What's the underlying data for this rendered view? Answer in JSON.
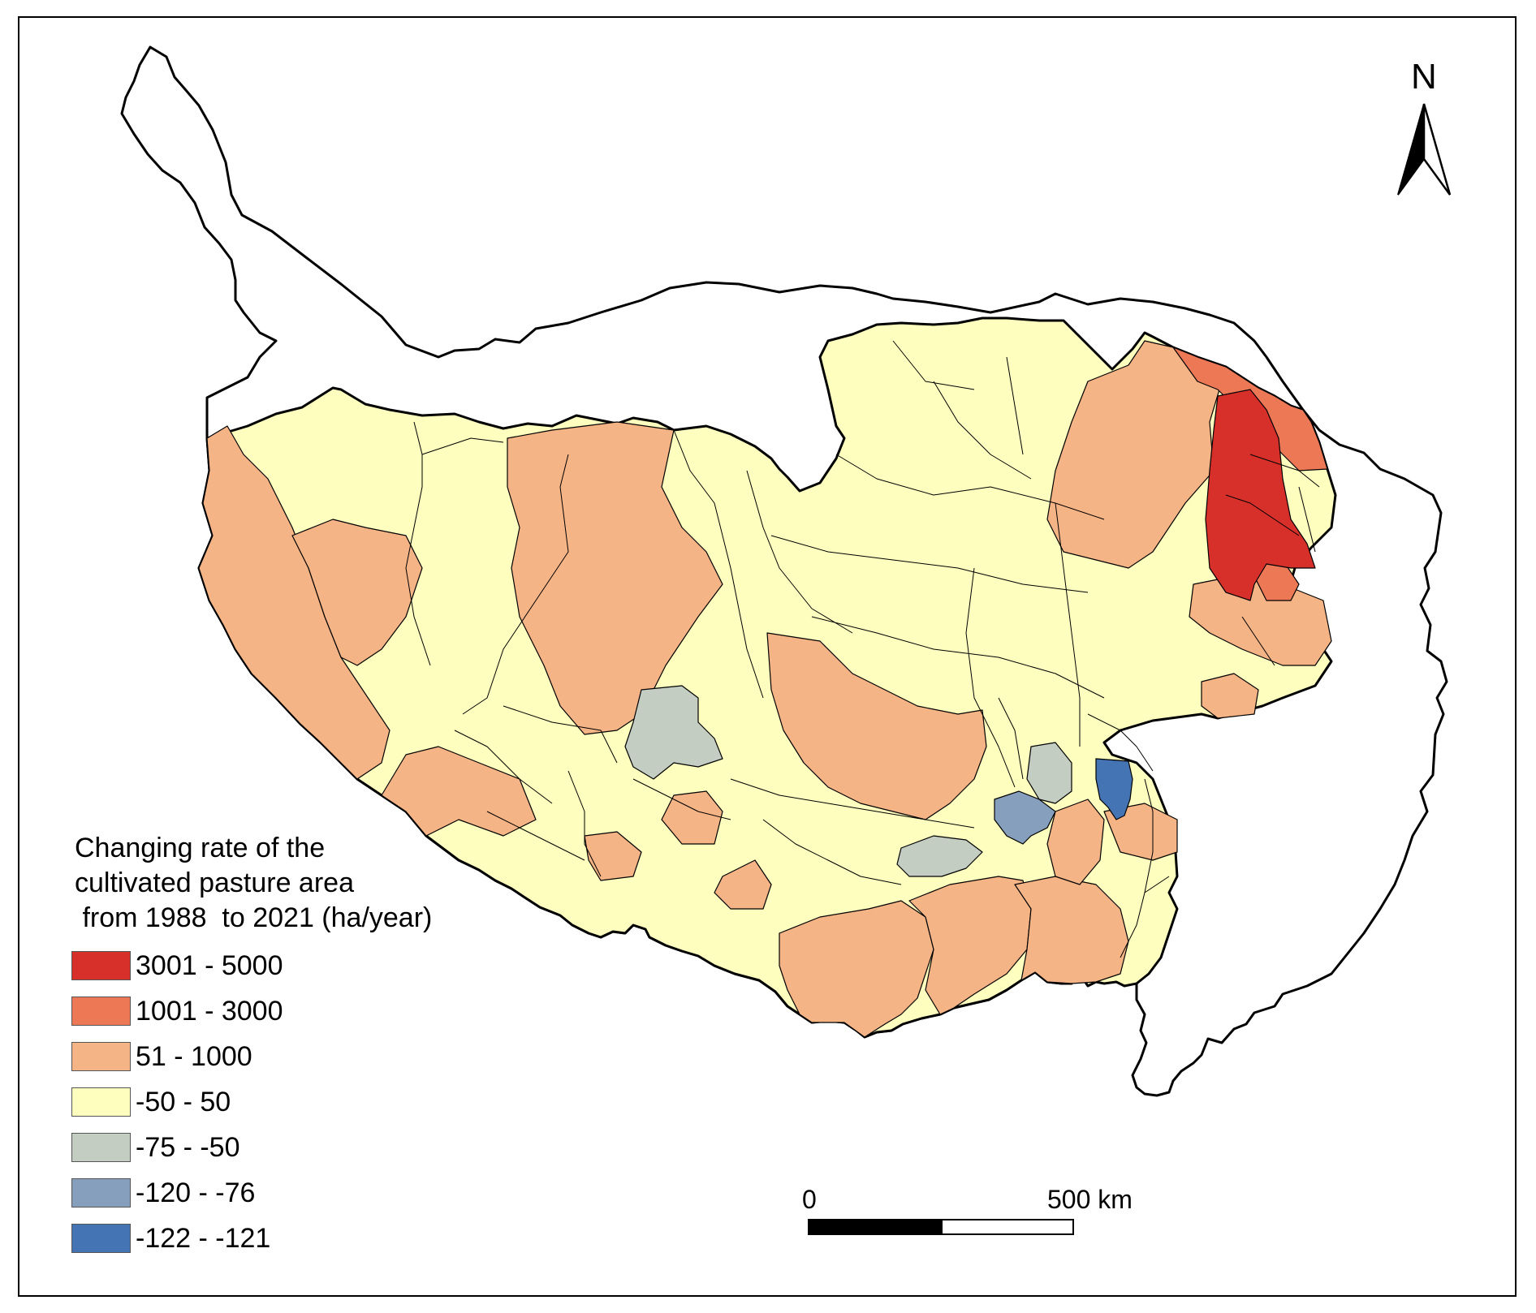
{
  "legend": {
    "title": "Changing rate of the\ncultivated pasture area\n from 1988  to 2021 (ha/year)",
    "classes": [
      {
        "label": "3001 - 5000",
        "color": "#d7302a"
      },
      {
        "label": "1001 - 3000",
        "color": "#ec7856"
      },
      {
        "label": "51 - 1000",
        "color": "#f5b486"
      },
      {
        "label": "-50 - 50",
        "color": "#fefebf"
      },
      {
        "label": "-75 - -50",
        "color": "#c4cdc1"
      },
      {
        "label": "-120 - -76",
        "color": "#859fbd"
      },
      {
        "label": "-122 - -121",
        "color": "#4574b5"
      }
    ]
  },
  "scale_bar": {
    "start_label": "0",
    "end_label": "500 km"
  },
  "north_arrow": {
    "label": "N",
    "icon": "north-arrow-icon"
  }
}
